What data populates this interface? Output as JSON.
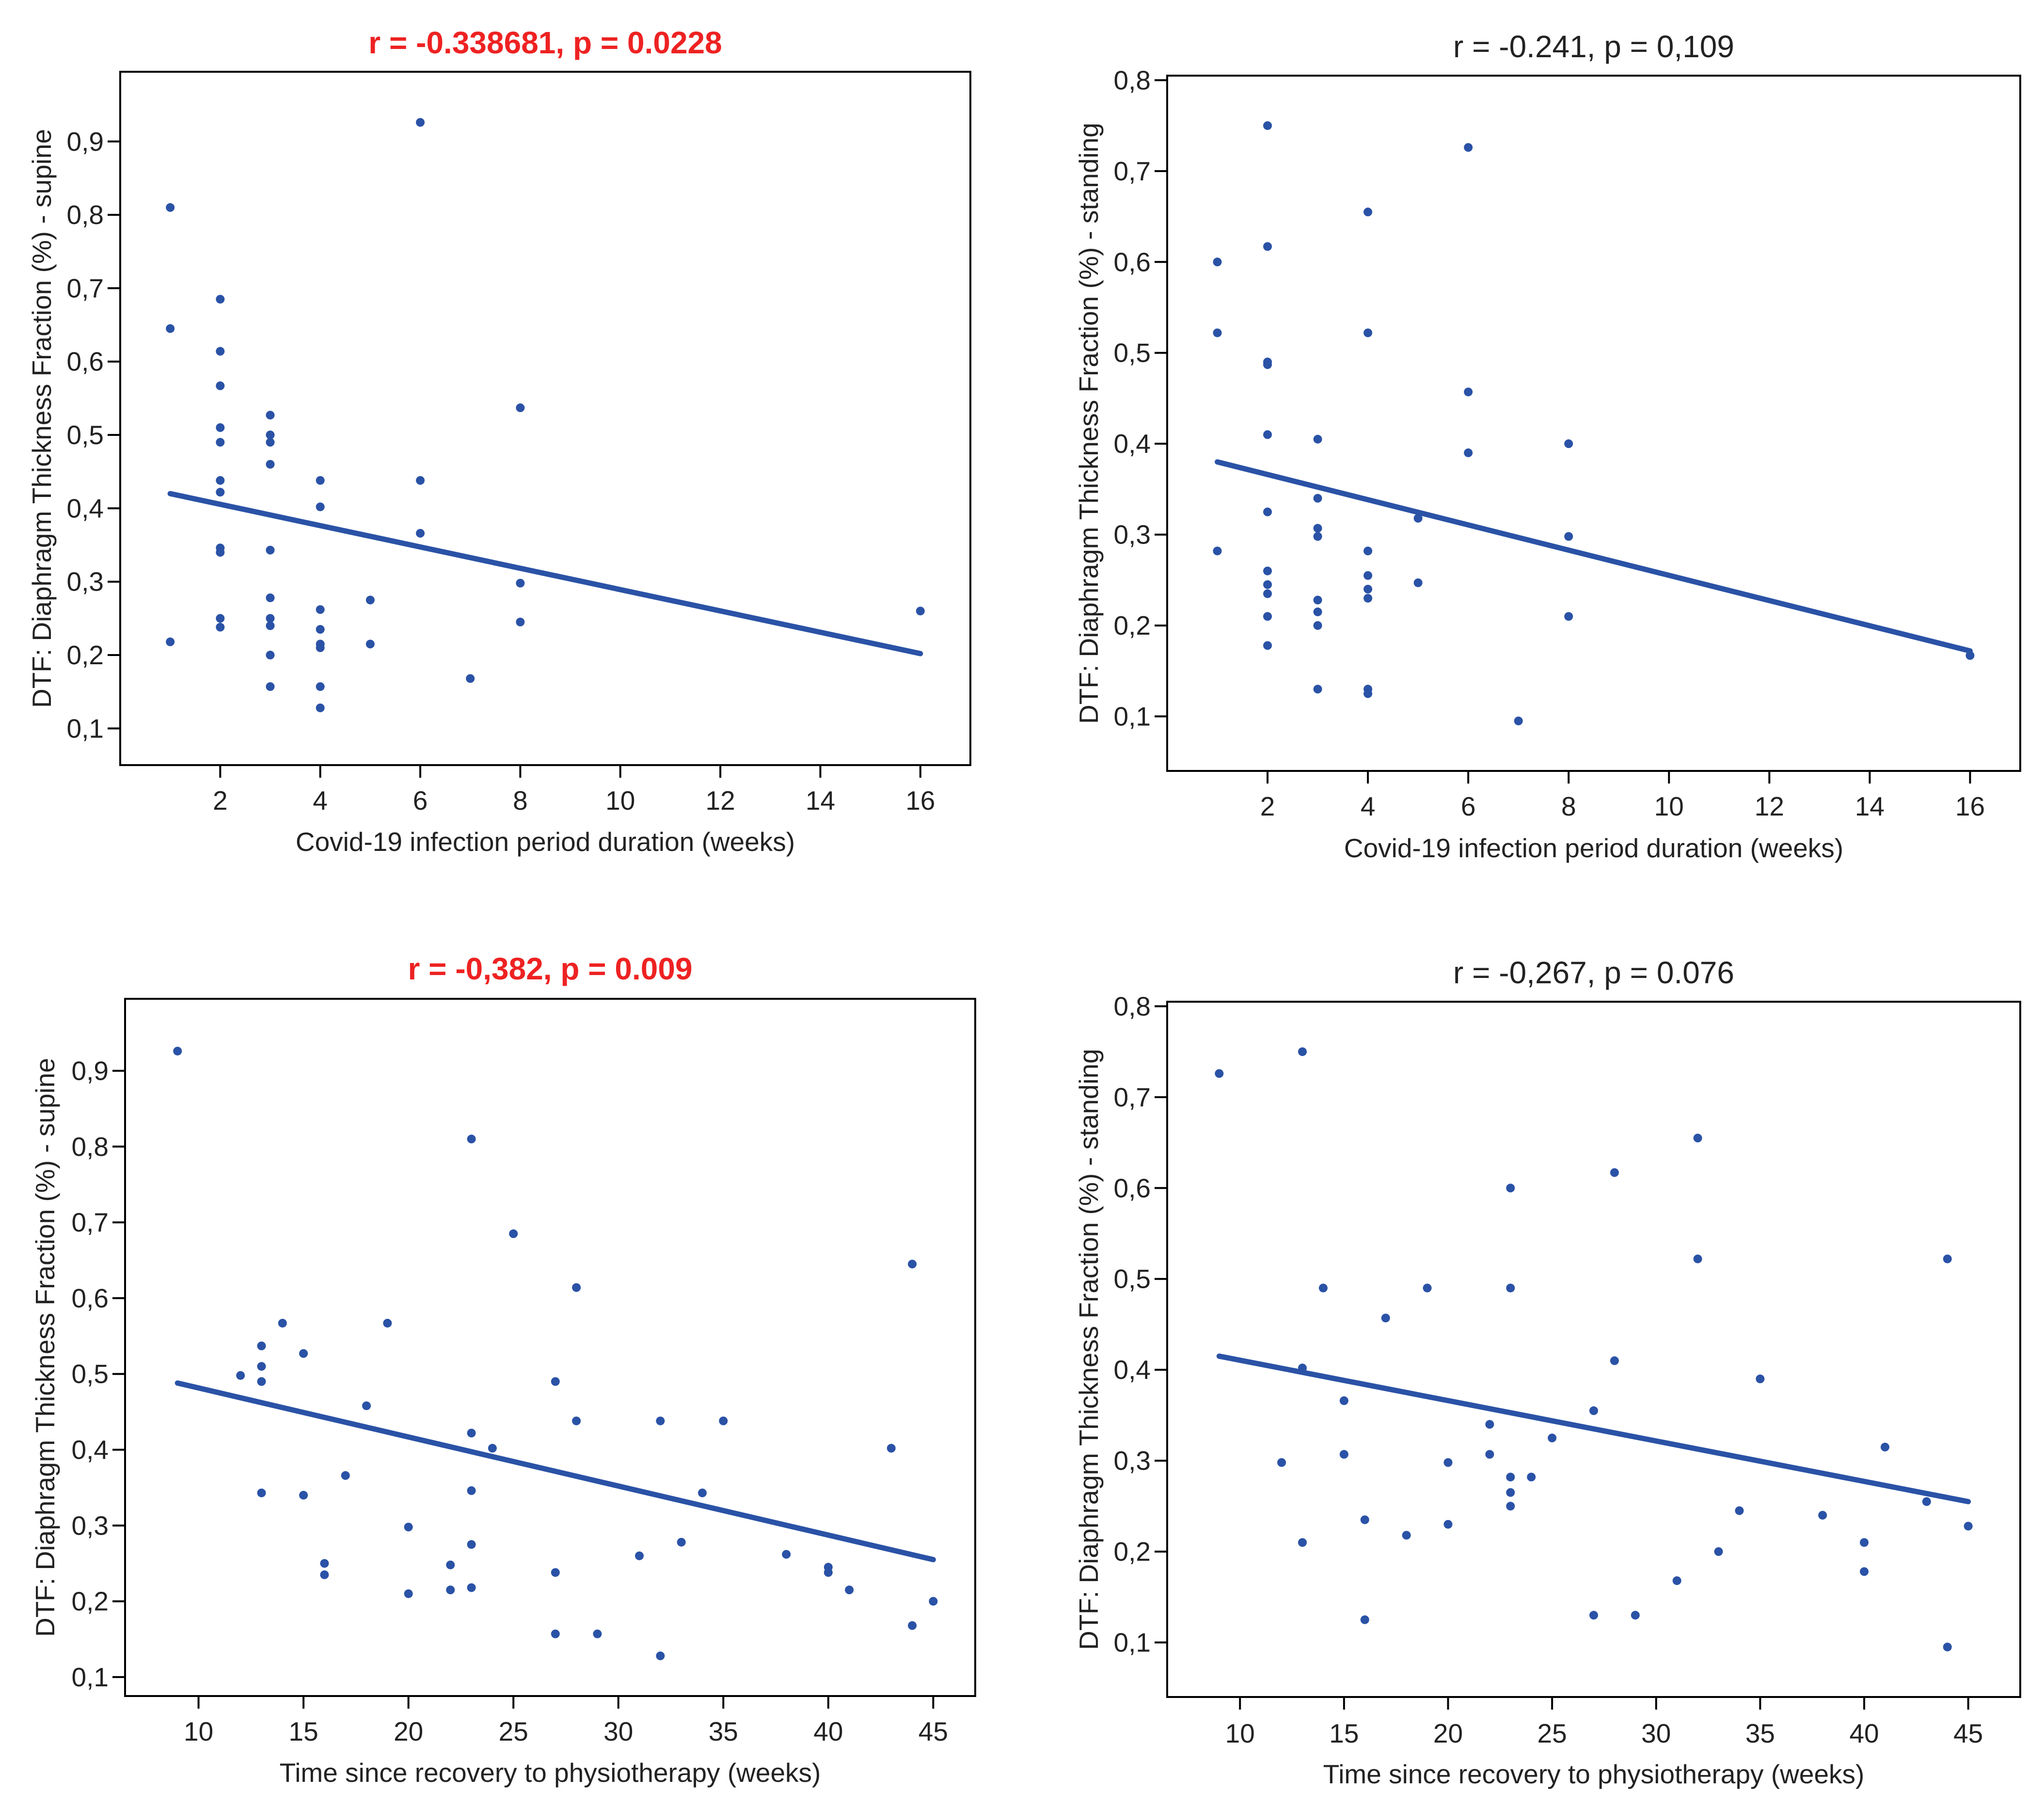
{
  "colors": {
    "sig": "#ee2222",
    "nonsig": "#222222",
    "point": "#2a52a6",
    "line": "#2a52a6",
    "frame": "#000000"
  },
  "chart_data": [
    {
      "type": "scatter",
      "title": "r = -0.338681, p = 0.0228",
      "title_significant": true,
      "xlabel": "Covid-19 infection period duration (weeks)",
      "ylabel": "DTF: Diaphragm Thickness Fraction (%) - supine",
      "xlim": [
        0,
        17
      ],
      "ylim": [
        0.05,
        0.995
      ],
      "xticks": [
        2,
        4,
        6,
        8,
        10,
        12,
        14,
        16
      ],
      "xtick_labels": [
        "2",
        "4",
        "6",
        "8",
        "10",
        "12",
        "14",
        "16"
      ],
      "yticks": [
        0.1,
        0.2,
        0.3,
        0.4,
        0.5,
        0.6,
        0.7,
        0.8,
        0.9
      ],
      "ytick_labels": [
        "0,1",
        "0,2",
        "0,3",
        "0,4",
        "0,5",
        "0,6",
        "0,7",
        "0,8",
        "0,9"
      ],
      "points": [
        [
          1,
          0.81
        ],
        [
          1,
          0.645
        ],
        [
          1,
          0.218
        ],
        [
          2,
          0.685
        ],
        [
          2,
          0.614
        ],
        [
          2,
          0.567
        ],
        [
          2,
          0.51
        ],
        [
          2,
          0.49
        ],
        [
          2,
          0.438
        ],
        [
          2,
          0.422
        ],
        [
          2,
          0.346
        ],
        [
          2,
          0.34
        ],
        [
          2,
          0.25
        ],
        [
          2,
          0.238
        ],
        [
          3,
          0.527
        ],
        [
          3,
          0.5
        ],
        [
          3,
          0.49
        ],
        [
          3,
          0.46
        ],
        [
          3,
          0.343
        ],
        [
          3,
          0.278
        ],
        [
          3,
          0.25
        ],
        [
          3,
          0.24
        ],
        [
          3,
          0.2
        ],
        [
          3,
          0.157
        ],
        [
          4,
          0.438
        ],
        [
          4,
          0.402
        ],
        [
          4,
          0.262
        ],
        [
          4,
          0.235
        ],
        [
          4,
          0.215
        ],
        [
          4,
          0.21
        ],
        [
          4,
          0.157
        ],
        [
          4,
          0.128
        ],
        [
          5,
          0.275
        ],
        [
          5,
          0.215
        ],
        [
          6,
          0.926
        ],
        [
          6,
          0.438
        ],
        [
          6,
          0.366
        ],
        [
          7,
          0.168
        ],
        [
          8,
          0.537
        ],
        [
          8,
          0.298
        ],
        [
          8,
          0.245
        ],
        [
          16,
          0.26
        ]
      ],
      "trend": [
        [
          1,
          0.42
        ],
        [
          16,
          0.202
        ]
      ]
    },
    {
      "type": "scatter",
      "title": "r = -0.241, p = 0,109",
      "title_significant": false,
      "xlabel": "Covid-19 infection period duration (weeks)",
      "ylabel": "DTF: Diaphragm Thickness Fraction (%) - standing",
      "xlim": [
        0,
        17
      ],
      "ylim": [
        0.04,
        0.805
      ],
      "xticks": [
        2,
        4,
        6,
        8,
        10,
        12,
        14,
        16
      ],
      "xtick_labels": [
        "2",
        "4",
        "6",
        "8",
        "10",
        "12",
        "14",
        "16"
      ],
      "yticks": [
        0.1,
        0.2,
        0.3,
        0.4,
        0.5,
        0.6,
        0.7,
        0.8
      ],
      "ytick_labels": [
        "0,1",
        "0,2",
        "0,3",
        "0,4",
        "0,5",
        "0,6",
        "0,7",
        "0,8"
      ],
      "points": [
        [
          1,
          0.6
        ],
        [
          1,
          0.522
        ],
        [
          1,
          0.282
        ],
        [
          2,
          0.75
        ],
        [
          2,
          0.617
        ],
        [
          2,
          0.49
        ],
        [
          2,
          0.487
        ],
        [
          2,
          0.41
        ],
        [
          2,
          0.325
        ],
        [
          2,
          0.26
        ],
        [
          2,
          0.245
        ],
        [
          2,
          0.235
        ],
        [
          2,
          0.21
        ],
        [
          2,
          0.178
        ],
        [
          3,
          0.405
        ],
        [
          3,
          0.34
        ],
        [
          3,
          0.307
        ],
        [
          3,
          0.298
        ],
        [
          3,
          0.228
        ],
        [
          3,
          0.215
        ],
        [
          3,
          0.2
        ],
        [
          3,
          0.13
        ],
        [
          4,
          0.655
        ],
        [
          4,
          0.522
        ],
        [
          4,
          0.282
        ],
        [
          4,
          0.255
        ],
        [
          4,
          0.24
        ],
        [
          4,
          0.23
        ],
        [
          4,
          0.13
        ],
        [
          4,
          0.125
        ],
        [
          5,
          0.318
        ],
        [
          5,
          0.247
        ],
        [
          6,
          0.726
        ],
        [
          6,
          0.457
        ],
        [
          6,
          0.39
        ],
        [
          7,
          0.095
        ],
        [
          8,
          0.4
        ],
        [
          8,
          0.298
        ],
        [
          8,
          0.21
        ],
        [
          16,
          0.167
        ]
      ],
      "trend": [
        [
          1,
          0.38
        ],
        [
          16,
          0.172
        ]
      ]
    },
    {
      "type": "scatter",
      "title": "r = -0,382, p = 0.009",
      "title_significant": true,
      "xlabel": "Time since recovery to physiotherapy (weeks)",
      "ylabel": "DTF: Diaphragm Thickness Fraction (%) - supine",
      "xlim": [
        6.5,
        47
      ],
      "ylim": [
        0.075,
        0.995
      ],
      "xticks": [
        10,
        15,
        20,
        25,
        30,
        35,
        40,
        45
      ],
      "xtick_labels": [
        "10",
        "15",
        "20",
        "25",
        "30",
        "35",
        "40",
        "45"
      ],
      "yticks": [
        0.1,
        0.2,
        0.3,
        0.4,
        0.5,
        0.6,
        0.7,
        0.8,
        0.9
      ],
      "ytick_labels": [
        "0,1",
        "0,2",
        "0,3",
        "0,4",
        "0,5",
        "0,6",
        "0,7",
        "0,8",
        "0,9"
      ],
      "points": [
        [
          9,
          0.926
        ],
        [
          12,
          0.498
        ],
        [
          13,
          0.537
        ],
        [
          13,
          0.51
        ],
        [
          13,
          0.49
        ],
        [
          13,
          0.343
        ],
        [
          14,
          0.567
        ],
        [
          15,
          0.527
        ],
        [
          15,
          0.34
        ],
        [
          16,
          0.25
        ],
        [
          16,
          0.235
        ],
        [
          17,
          0.366
        ],
        [
          18,
          0.458
        ],
        [
          19,
          0.567
        ],
        [
          20,
          0.298
        ],
        [
          20,
          0.21
        ],
        [
          22,
          0.248
        ],
        [
          22,
          0.215
        ],
        [
          23,
          0.81
        ],
        [
          23,
          0.422
        ],
        [
          23,
          0.346
        ],
        [
          23,
          0.275
        ],
        [
          23,
          0.218
        ],
        [
          24,
          0.402
        ],
        [
          25,
          0.685
        ],
        [
          27,
          0.49
        ],
        [
          27,
          0.238
        ],
        [
          27,
          0.157
        ],
        [
          28,
          0.614
        ],
        [
          28,
          0.438
        ],
        [
          29,
          0.157
        ],
        [
          31,
          0.26
        ],
        [
          32,
          0.438
        ],
        [
          32,
          0.128
        ],
        [
          33,
          0.278
        ],
        [
          34,
          0.343
        ],
        [
          35,
          0.438
        ],
        [
          38,
          0.262
        ],
        [
          40,
          0.245
        ],
        [
          40,
          0.238
        ],
        [
          41,
          0.215
        ],
        [
          43,
          0.402
        ],
        [
          44,
          0.645
        ],
        [
          44,
          0.168
        ],
        [
          45,
          0.2
        ]
      ],
      "trend": [
        [
          9,
          0.488
        ],
        [
          45,
          0.255
        ]
      ]
    },
    {
      "type": "scatter",
      "title": "r = -0,267, p = 0.076",
      "title_significant": false,
      "xlabel": "Time since recovery to physiotherapy (weeks)",
      "ylabel": "DTF: Diaphragm Thickness Fraction (%) - standing",
      "xlim": [
        6.5,
        47.5
      ],
      "ylim": [
        0.04,
        0.805
      ],
      "xticks": [
        10,
        15,
        20,
        25,
        30,
        35,
        40,
        45
      ],
      "xtick_labels": [
        "10",
        "15",
        "20",
        "25",
        "30",
        "35",
        "40",
        "45"
      ],
      "yticks": [
        0.1,
        0.2,
        0.3,
        0.4,
        0.5,
        0.6,
        0.7,
        0.8
      ],
      "ytick_labels": [
        "0,1",
        "0,2",
        "0,3",
        "0,4",
        "0,5",
        "0,6",
        "0,7",
        "0,8"
      ],
      "points": [
        [
          9,
          0.726
        ],
        [
          12,
          0.298
        ],
        [
          13,
          0.75
        ],
        [
          13,
          0.402
        ],
        [
          13,
          0.21
        ],
        [
          14,
          0.49
        ],
        [
          15,
          0.366
        ],
        [
          15,
          0.307
        ],
        [
          16,
          0.235
        ],
        [
          16,
          0.125
        ],
        [
          17,
          0.457
        ],
        [
          18,
          0.218
        ],
        [
          19,
          0.49
        ],
        [
          20,
          0.298
        ],
        [
          20,
          0.23
        ],
        [
          22,
          0.34
        ],
        [
          22,
          0.307
        ],
        [
          23,
          0.6
        ],
        [
          23,
          0.49
        ],
        [
          23,
          0.282
        ],
        [
          23,
          0.265
        ],
        [
          23,
          0.25
        ],
        [
          24,
          0.282
        ],
        [
          25,
          0.325
        ],
        [
          27,
          0.355
        ],
        [
          27,
          0.13
        ],
        [
          28,
          0.617
        ],
        [
          28,
          0.41
        ],
        [
          29,
          0.13
        ],
        [
          31,
          0.168
        ],
        [
          32,
          0.655
        ],
        [
          32,
          0.522
        ],
        [
          33,
          0.2
        ],
        [
          34,
          0.245
        ],
        [
          35,
          0.39
        ],
        [
          38,
          0.24
        ],
        [
          40,
          0.21
        ],
        [
          40,
          0.178
        ],
        [
          41,
          0.315
        ],
        [
          43,
          0.255
        ],
        [
          44,
          0.522
        ],
        [
          44,
          0.095
        ],
        [
          45,
          0.228
        ]
      ],
      "trend": [
        [
          9,
          0.415
        ],
        [
          45,
          0.255
        ]
      ]
    }
  ]
}
